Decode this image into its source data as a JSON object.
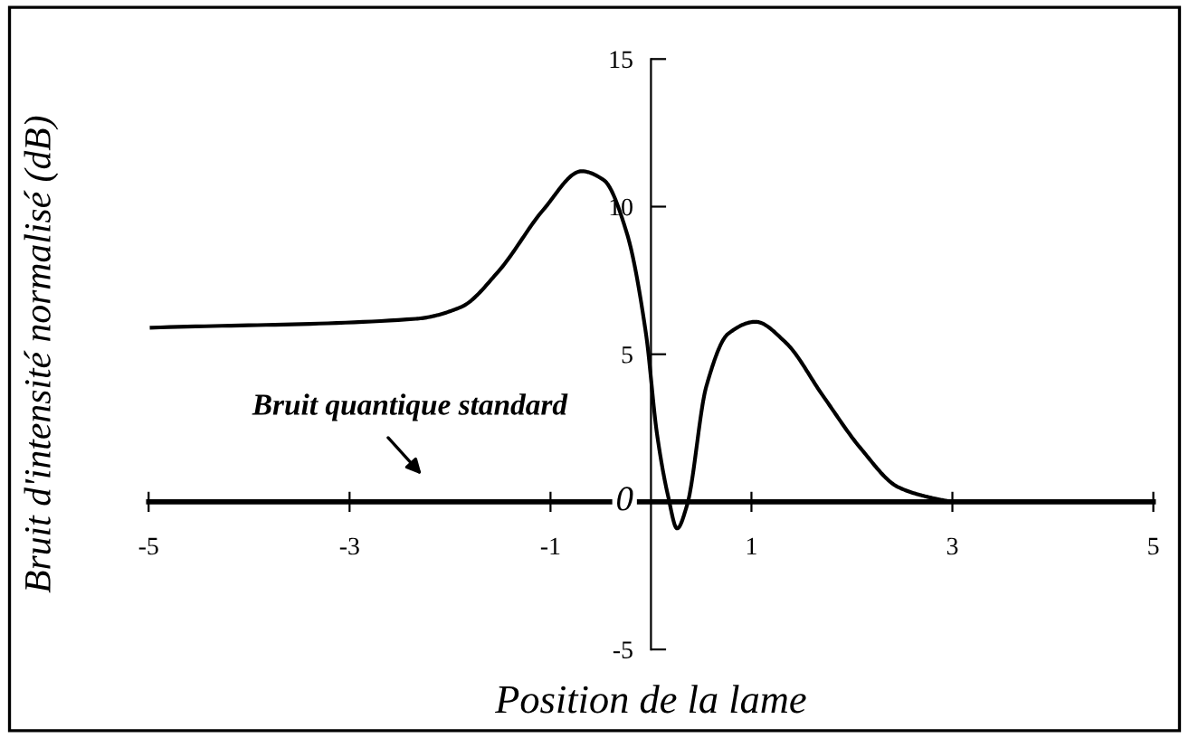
{
  "chart_data": {
    "type": "line",
    "xlabel": "Position de la lame",
    "ylabel": "Bruit d'intensité normalisé (dB)",
    "x": [
      -4.97,
      -2.34,
      -1.89,
      -1.52,
      -1.07,
      -0.69,
      -0.47,
      -0.24,
      -0.05,
      0.06,
      0.17,
      0.26,
      0.36,
      0.55,
      0.77,
      1.04,
      1.34,
      1.71,
      2.09,
      2.46,
      2.84,
      3.0
    ],
    "series": [
      {
        "color": "#000000",
        "values": [
          5.9,
          6.2,
          6.6,
          7.8,
          9.9,
          11.2,
          10.9,
          9.1,
          5.7,
          2.3,
          0.2,
          -0.9,
          -0.1,
          3.9,
          5.7,
          6.1,
          5.4,
          3.6,
          1.8,
          0.5,
          0.1,
          0.0
        ]
      }
    ],
    "xlim": [
      -5,
      5
    ],
    "ylim": [
      -5,
      15
    ],
    "xticks": [
      -5,
      -3,
      -1,
      1,
      3,
      5
    ],
    "yticks": [
      -5,
      0,
      5,
      10,
      15
    ],
    "grid": false,
    "legend": false,
    "marker": "none",
    "line_style": "solid",
    "annotations": [
      "Bruit quantique standard"
    ]
  }
}
